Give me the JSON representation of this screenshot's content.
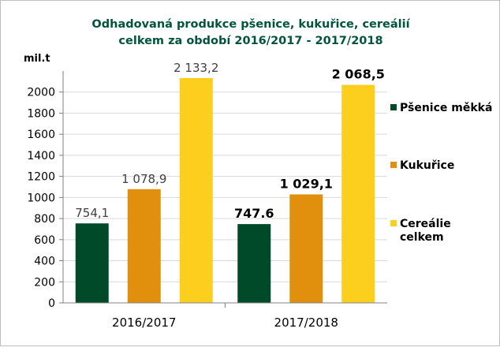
{
  "chart_data": {
    "type": "bar",
    "title_lines": [
      "Odhadovaná produkce  pšenice, kukuřice, cereálií",
      "celkem za období  2016/2017 - 2017/2018"
    ],
    "ylabel": "mil.t",
    "xlabel": "",
    "ylim": [
      0,
      2200
    ],
    "yticks": [
      0,
      200,
      400,
      600,
      800,
      1000,
      1200,
      1400,
      1600,
      1800,
      2000
    ],
    "grid": true,
    "legend_position": "right",
    "categories": [
      "2016/2017",
      "2017/2018"
    ],
    "series": [
      {
        "name": "Pšenice měkká",
        "color": "#004a2a",
        "values": [
          754.1,
          747.6
        ],
        "labels": [
          "754,1",
          "747.6"
        ]
      },
      {
        "name": "Kukuřice",
        "color": "#e0900c",
        "values": [
          1078.9,
          1029.1
        ],
        "labels": [
          "1 078,9",
          "1 029,1"
        ]
      },
      {
        "name": "Cereálie celkem",
        "legend_lines": [
          "Cereálie",
          "celkem"
        ],
        "color": "#fcce1e",
        "values": [
          2133.2,
          2068.5
        ],
        "labels": [
          "2 133,2",
          "2 068,5"
        ]
      }
    ],
    "label_bold": [
      false,
      true
    ],
    "title_color": "#00553a"
  }
}
